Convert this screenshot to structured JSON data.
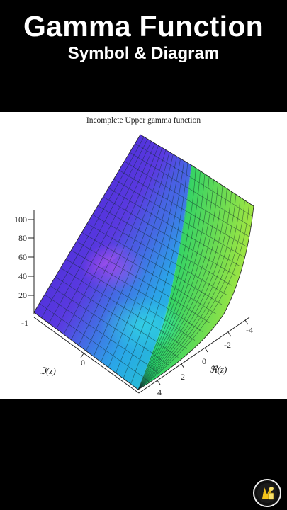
{
  "header": {
    "title": "Gamma Function",
    "subtitle": "Symbol & Diagram"
  },
  "plot": {
    "title": "Incomplete Upper gamma function",
    "z_axis_ticks": [
      "100",
      "80",
      "60",
      "40",
      "20"
    ],
    "imag_axis_label": "ℑ(z)",
    "imag_axis_ticks": [
      "-1",
      "0"
    ],
    "real_axis_label": "ℜ(z)",
    "real_axis_ticks": [
      "-4",
      "-2",
      "0",
      "2",
      "4"
    ],
    "surface_colors": [
      "#4b1fd4",
      "#8a35e8",
      "#27c3e8",
      "#22e06a",
      "#9be83a"
    ]
  },
  "branding": {
    "logo_icon": "calculator-badge-icon"
  }
}
